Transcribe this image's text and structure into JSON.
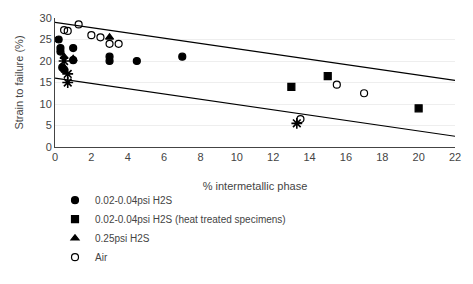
{
  "chart_data": {
    "type": "scatter",
    "xlabel": "% intermetallic phase",
    "ylabel": "Strain to failure (%)",
    "xlim": [
      0,
      22
    ],
    "ylim": [
      0,
      30
    ],
    "xticks": [
      0,
      2,
      4,
      6,
      8,
      10,
      12,
      14,
      16,
      18,
      20,
      22
    ],
    "yticks": [
      0,
      5,
      10,
      15,
      20,
      25,
      30
    ],
    "grid": "y",
    "legend": "bottom",
    "series": [
      {
        "name": "0.02-0.04psi H2S",
        "type": "scatter",
        "marker": "circle",
        "color": "#000000",
        "x": [
          0.2,
          0.3,
          0.3,
          0.4,
          0.5,
          1.0,
          1.0,
          3.0,
          3.0,
          4.5,
          7.0
        ],
        "values": [
          25.0,
          23.0,
          22.2,
          18.5,
          18.0,
          20.2,
          23.0,
          21.0,
          20.0,
          20.0,
          21.0
        ]
      },
      {
        "name": "0.02-0.04psi H2S (heat treated specimens)",
        "type": "scatter",
        "marker": "square",
        "color": "#000000",
        "x": [
          13.0,
          15.0,
          20.0
        ],
        "values": [
          14.0,
          16.5,
          9.0
        ]
      },
      {
        "name": "0.25psi H2S",
        "type": "scatter",
        "marker": "triangle",
        "color": "#000000",
        "x": [
          0.5,
          1.0,
          3.0
        ],
        "values": [
          21.0,
          20.5,
          25.5
        ]
      },
      {
        "name": "Air",
        "type": "scatter",
        "marker": "open circle",
        "color": "#000000",
        "x": [
          0.5,
          0.7,
          1.3,
          2.0,
          2.5,
          3.0,
          3.5,
          13.5,
          15.5,
          17.0
        ],
        "values": [
          27.2,
          27.0,
          28.5,
          26.0,
          25.5,
          24.0,
          24.0,
          6.5,
          14.5,
          12.5
        ]
      },
      {
        "type": "scatter",
        "marker": "asterisk",
        "color": "#000000",
        "x": [
          0.5,
          0.7,
          0.7,
          13.3
        ],
        "values": [
          20.0,
          17.0,
          15.0,
          5.5
        ]
      },
      {
        "type": "line",
        "line_style": "solid",
        "color": "#000000",
        "x": [
          0,
          22
        ],
        "values": [
          29.0,
          15.5
        ]
      },
      {
        "type": "line",
        "line_style": "solid",
        "color": "#000000",
        "x": [
          0,
          22
        ],
        "values": [
          16.0,
          2.5
        ]
      }
    ]
  }
}
